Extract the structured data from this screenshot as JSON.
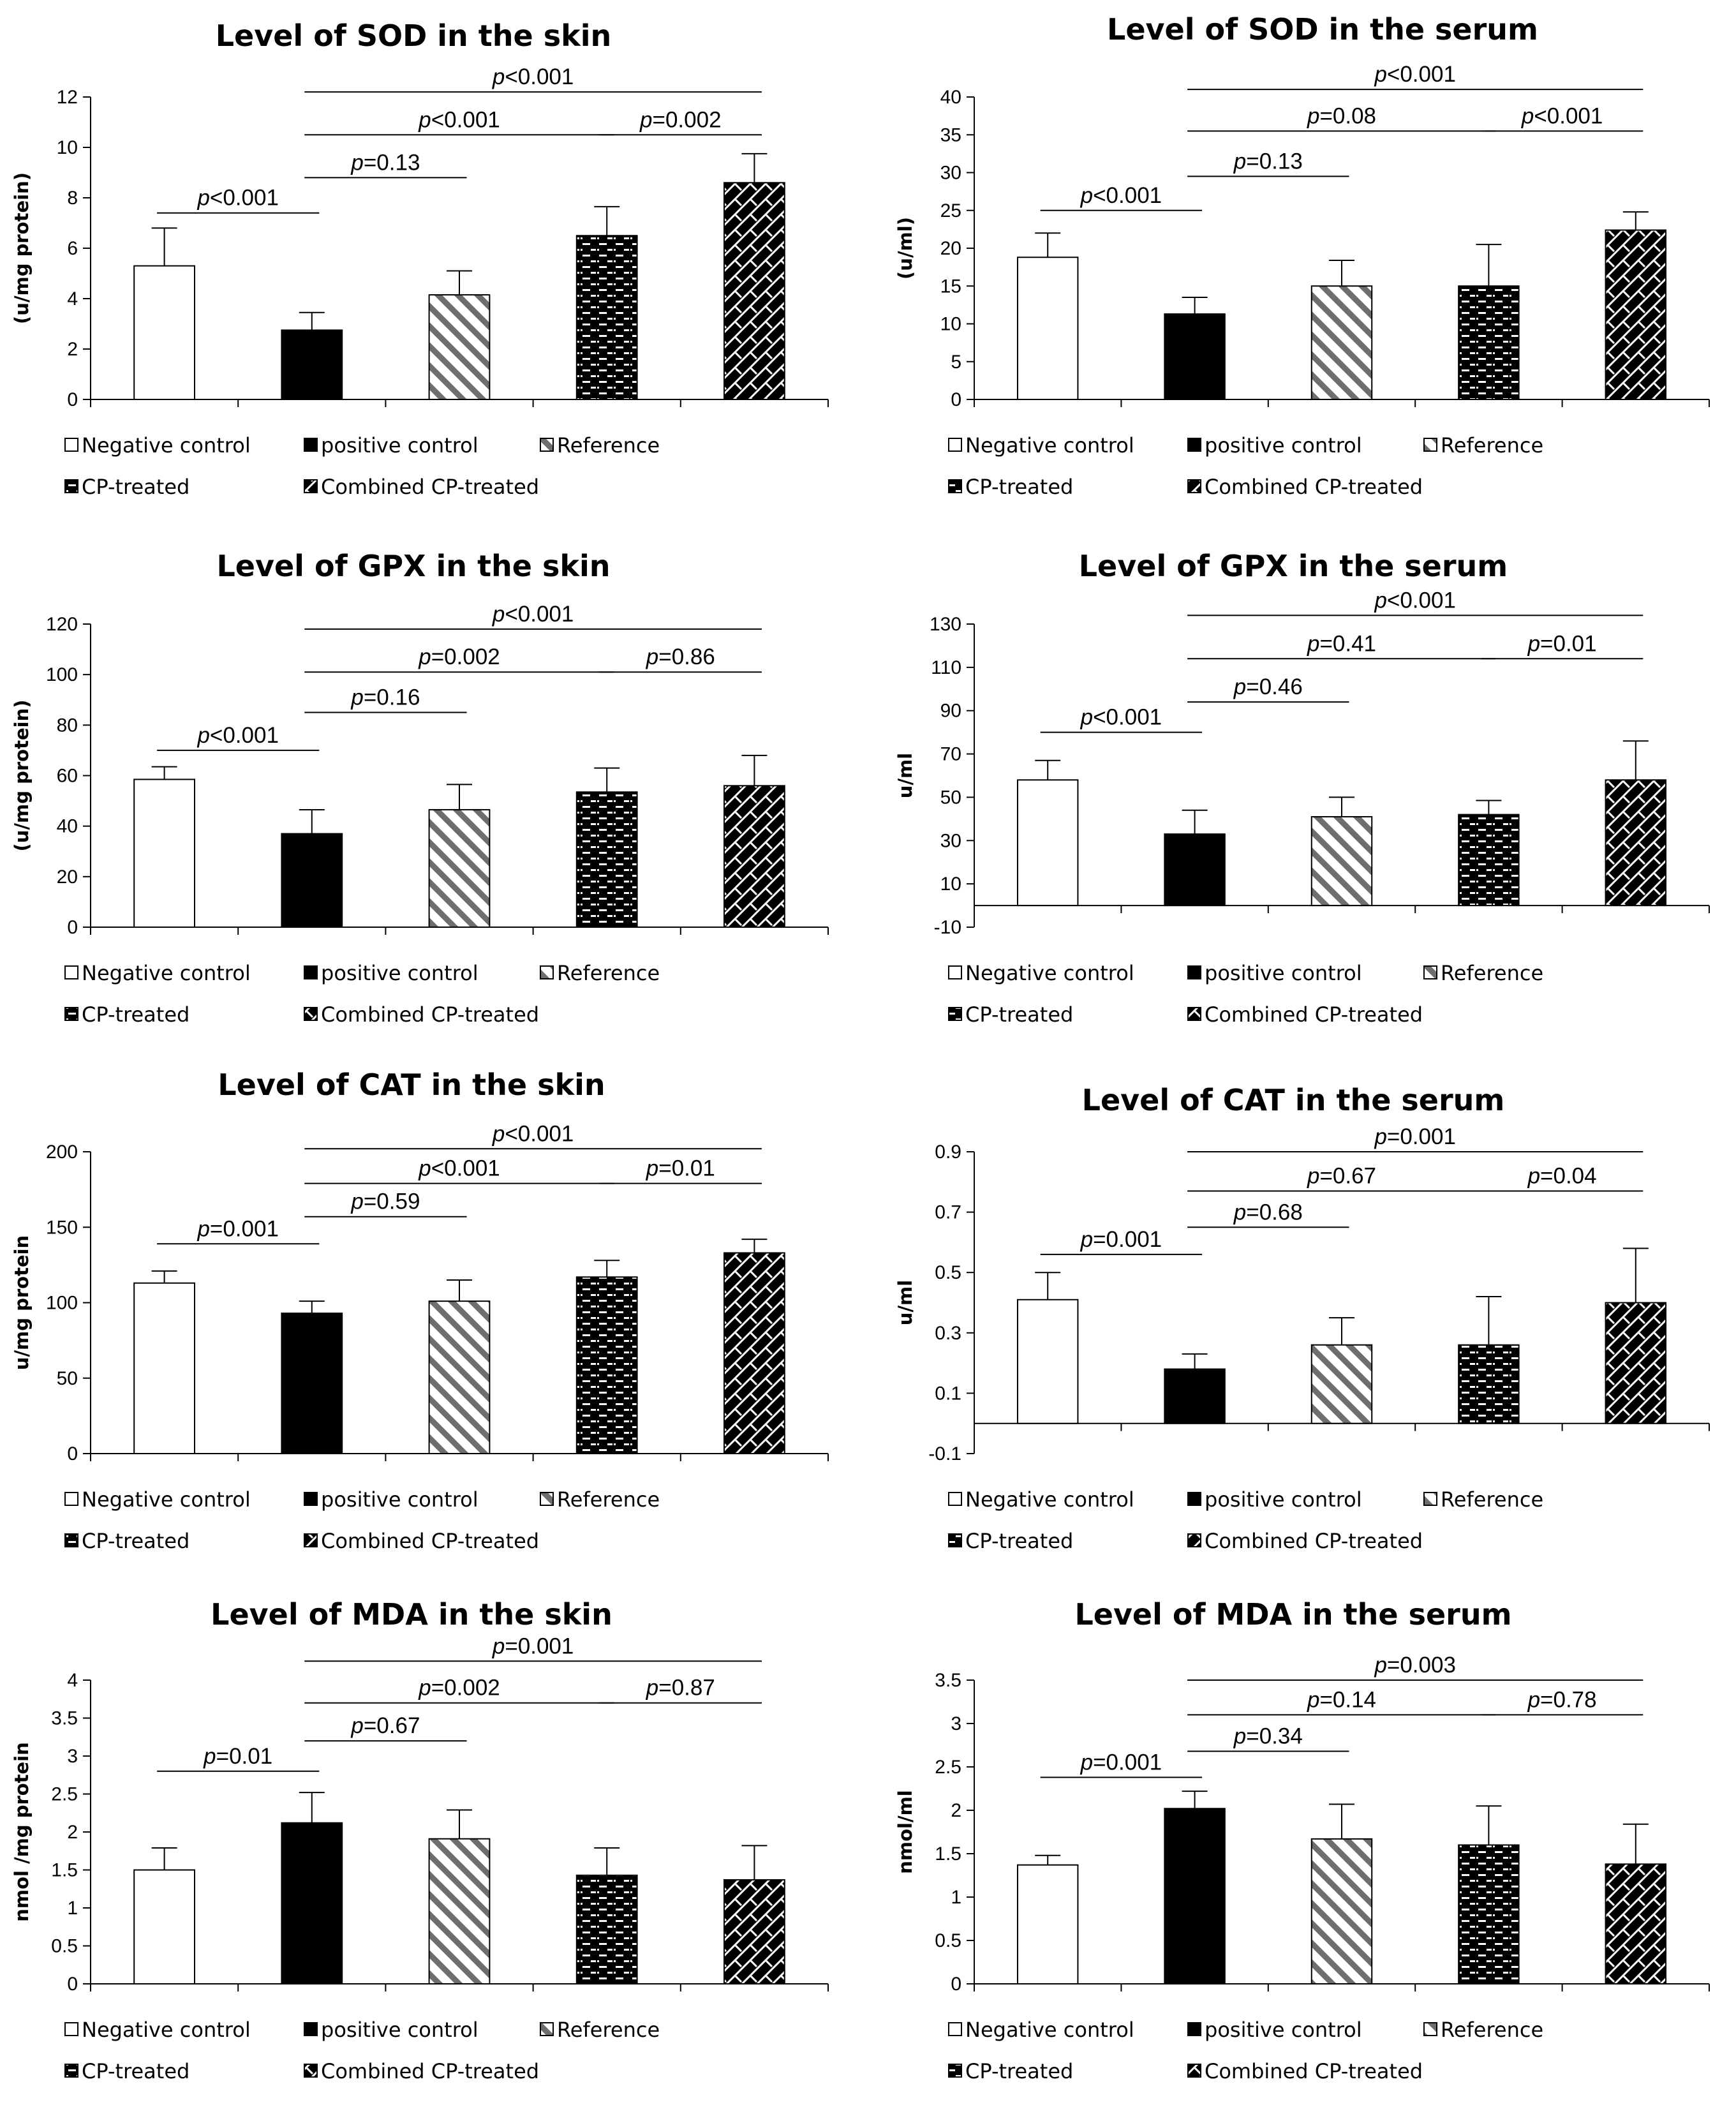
{
  "legend": [
    "Negative control",
    "positive control",
    "Reference",
    "CP-treated",
    "Combined CP-treated"
  ],
  "series_colors": {
    "axis": "#000000",
    "fill_dark": "#000000",
    "fill_light": "#ffffff"
  },
  "chart_data": [
    {
      "type": "bar",
      "title": "Level of SOD in the skin",
      "ylabel": "(u/mg protein)",
      "categories": [
        "Negative control",
        "positive control",
        "Reference",
        "CP-treated",
        "Combined CP-treated"
      ],
      "values": [
        5.3,
        2.75,
        4.15,
        6.5,
        8.6
      ],
      "errors": [
        1.5,
        0.7,
        0.95,
        1.15,
        1.15
      ],
      "ylim": [
        0,
        12
      ],
      "ticks": [
        0,
        2,
        4,
        6,
        8,
        10,
        12
      ],
      "tick_labels": [
        "0",
        "2",
        "4",
        "6",
        "8",
        "10",
        "12"
      ],
      "comparisons": [
        {
          "label": "p<0.001",
          "from": 0,
          "to": 1,
          "y": 7.4
        },
        {
          "label": "p=0.13",
          "from": 1,
          "to": 2,
          "y": 8.8
        },
        {
          "label": "p<0.001",
          "from": 1,
          "to": 3,
          "y": 10.5
        },
        {
          "label": "p=0.002",
          "from": 3,
          "to": 4,
          "y": 10.5
        },
        {
          "label": "p<0.001",
          "from": 1,
          "to": 4,
          "y": 12.2
        }
      ]
    },
    {
      "type": "bar",
      "title": "Level of SOD in the serum",
      "ylabel": "(u/ml)",
      "categories": [
        "Negative control",
        "positive control",
        "Reference",
        "CP-treated",
        "Combined CP-treated"
      ],
      "values": [
        18.8,
        11.3,
        15.0,
        15.0,
        22.4
      ],
      "errors": [
        3.2,
        2.2,
        3.4,
        5.5,
        2.4
      ],
      "ylim": [
        0,
        40
      ],
      "ticks": [
        0,
        5,
        10,
        15,
        20,
        25,
        30,
        35,
        40
      ],
      "tick_labels": [
        "0",
        "5",
        "10",
        "15",
        "20",
        "25",
        "30",
        "35",
        "40"
      ],
      "comparisons": [
        {
          "label": "p<0.001",
          "from": 0,
          "to": 1,
          "y": 25
        },
        {
          "label": "p=0.13",
          "from": 1,
          "to": 2,
          "y": 29.5
        },
        {
          "label": "p=0.08",
          "from": 1,
          "to": 3,
          "y": 35.5
        },
        {
          "label": "p<0.001",
          "from": 3,
          "to": 4,
          "y": 35.5
        },
        {
          "label": "p<0.001",
          "from": 1,
          "to": 4,
          "y": 41
        }
      ]
    },
    {
      "type": "bar",
      "title": "Level of GPX in the skin",
      "ylabel": "(u/mg protein)",
      "categories": [
        "Negative control",
        "positive control",
        "Reference",
        "CP-treated",
        "Combined CP-treated"
      ],
      "values": [
        58.5,
        37,
        46.5,
        53.5,
        56
      ],
      "errors": [
        5,
        9.5,
        10,
        9.5,
        12
      ],
      "ylim": [
        0,
        120
      ],
      "ticks": [
        0,
        20,
        40,
        60,
        80,
        100,
        120
      ],
      "tick_labels": [
        "0",
        "20",
        "40",
        "60",
        "80",
        "100",
        "120"
      ],
      "comparisons": [
        {
          "label": "p<0.001",
          "from": 0,
          "to": 1,
          "y": 70
        },
        {
          "label": "p=0.16",
          "from": 1,
          "to": 2,
          "y": 85
        },
        {
          "label": "p=0.002",
          "from": 1,
          "to": 3,
          "y": 101
        },
        {
          "label": "p=0.86",
          "from": 3,
          "to": 4,
          "y": 101
        },
        {
          "label": "p<0.001",
          "from": 1,
          "to": 4,
          "y": 118
        }
      ]
    },
    {
      "type": "bar",
      "title": "Level of GPX in the serum",
      "ylabel": "u/ml",
      "categories": [
        "Negative control",
        "positive control",
        "Reference",
        "CP-treated",
        "Combined CP-treated"
      ],
      "values": [
        58,
        33,
        41,
        42,
        58
      ],
      "errors": [
        9,
        11,
        9,
        6.5,
        18
      ],
      "ylim": [
        -10,
        130
      ],
      "ticks": [
        -10,
        10,
        30,
        50,
        70,
        90,
        110,
        130
      ],
      "tick_labels": [
        "-10",
        "10",
        "30",
        "50",
        "70",
        "90",
        "110",
        "130"
      ],
      "comparisons": [
        {
          "label": "p<0.001",
          "from": 0,
          "to": 1,
          "y": 80
        },
        {
          "label": "p=0.46",
          "from": 1,
          "to": 2,
          "y": 94
        },
        {
          "label": "p=0.41",
          "from": 1,
          "to": 3,
          "y": 114
        },
        {
          "label": "p=0.01",
          "from": 3,
          "to": 4,
          "y": 114
        },
        {
          "label": "p<0.001",
          "from": 1,
          "to": 4,
          "y": 134
        }
      ]
    },
    {
      "type": "bar",
      "title": "Level of CAT in the skin",
      "ylabel": "u/mg protein",
      "categories": [
        "Negative control",
        "positive control",
        "Reference",
        "CP-treated",
        "Combined CP-treated"
      ],
      "values": [
        113,
        93,
        101,
        117,
        133
      ],
      "errors": [
        8,
        8,
        14,
        11,
        9
      ],
      "ylim": [
        0,
        200
      ],
      "ticks": [
        0,
        50,
        100,
        150,
        200
      ],
      "tick_labels": [
        "0",
        "50",
        "100",
        "150",
        "200"
      ],
      "comparisons": [
        {
          "label": "p=0.001",
          "from": 0,
          "to": 1,
          "y": 139
        },
        {
          "label": "p=0.59",
          "from": 1,
          "to": 2,
          "y": 157
        },
        {
          "label": "p<0.001",
          "from": 1,
          "to": 3,
          "y": 179
        },
        {
          "label": "p=0.01",
          "from": 3,
          "to": 4,
          "y": 179
        },
        {
          "label": "p<0.001",
          "from": 1,
          "to": 4,
          "y": 202
        }
      ]
    },
    {
      "type": "bar",
      "title": "Level of CAT in the serum",
      "ylabel": "u/ml",
      "categories": [
        "Negative control",
        "positive control",
        "Reference",
        "CP-treated",
        "Combined CP-treated"
      ],
      "values": [
        0.41,
        0.18,
        0.26,
        0.26,
        0.4
      ],
      "errors": [
        0.09,
        0.05,
        0.09,
        0.16,
        0.18
      ],
      "ylim": [
        -0.1,
        0.9
      ],
      "ticks": [
        -0.1,
        0.1,
        0.3,
        0.5,
        0.7,
        0.9
      ],
      "tick_labels": [
        "-0.1",
        "0.1",
        "0.3",
        "0.5",
        "0.7",
        "0.9"
      ],
      "comparisons": [
        {
          "label": "p=0.001",
          "from": 0,
          "to": 1,
          "y": 0.56
        },
        {
          "label": "p=0.68",
          "from": 1,
          "to": 2,
          "y": 0.65
        },
        {
          "label": "p=0.67",
          "from": 1,
          "to": 3,
          "y": 0.77
        },
        {
          "label": "p=0.04",
          "from": 3,
          "to": 4,
          "y": 0.77
        },
        {
          "label": "p=0.001",
          "from": 1,
          "to": 4,
          "y": 0.9
        }
      ]
    },
    {
      "type": "bar",
      "title": "Level of MDA in the skin",
      "ylabel": "nmol /mg protein",
      "categories": [
        "Negative control",
        "positive control",
        "Reference",
        "CP-treated",
        "Combined CP-treated"
      ],
      "values": [
        1.5,
        2.12,
        1.91,
        1.43,
        1.37
      ],
      "errors": [
        0.29,
        0.4,
        0.38,
        0.36,
        0.45
      ],
      "ylim": [
        0,
        4
      ],
      "ticks": [
        0,
        0.5,
        1,
        1.5,
        2,
        2.5,
        3,
        3.5,
        4
      ],
      "tick_labels": [
        "0",
        "0.5",
        "1",
        "1.5",
        "2",
        "2.5",
        "3",
        "3.5",
        "4"
      ],
      "comparisons": [
        {
          "label": "p=0.01",
          "from": 0,
          "to": 1,
          "y": 2.8
        },
        {
          "label": "p=0.67",
          "from": 1,
          "to": 2,
          "y": 3.2
        },
        {
          "label": "p=0.002",
          "from": 1,
          "to": 3,
          "y": 3.7
        },
        {
          "label": "p=0.87",
          "from": 3,
          "to": 4,
          "y": 3.7
        },
        {
          "label": "p=0.001",
          "from": 1,
          "to": 4,
          "y": 4.25
        }
      ]
    },
    {
      "type": "bar",
      "title": "Level of MDA in the serum",
      "ylabel": "nmol/ml",
      "categories": [
        "Negative control",
        "positive control",
        "Reference",
        "CP-treated",
        "Combined CP-treated"
      ],
      "values": [
        1.37,
        2.02,
        1.67,
        1.6,
        1.38
      ],
      "errors": [
        0.11,
        0.2,
        0.4,
        0.45,
        0.46
      ],
      "ylim": [
        0,
        3.5
      ],
      "ticks": [
        0,
        0.5,
        1,
        1.5,
        2,
        2.5,
        3,
        3.5
      ],
      "tick_labels": [
        "0",
        "0.5",
        "1",
        "1.5",
        "2",
        "2.5",
        "3",
        "3.5"
      ],
      "comparisons": [
        {
          "label": "p=0.001",
          "from": 0,
          "to": 1,
          "y": 2.38
        },
        {
          "label": "p=0.34",
          "from": 1,
          "to": 2,
          "y": 2.68
        },
        {
          "label": "p=0.14",
          "from": 1,
          "to": 3,
          "y": 3.1
        },
        {
          "label": "p=0.78",
          "from": 3,
          "to": 4,
          "y": 3.1
        },
        {
          "label": "p=0.003",
          "from": 1,
          "to": 4,
          "y": 3.5
        }
      ]
    }
  ]
}
